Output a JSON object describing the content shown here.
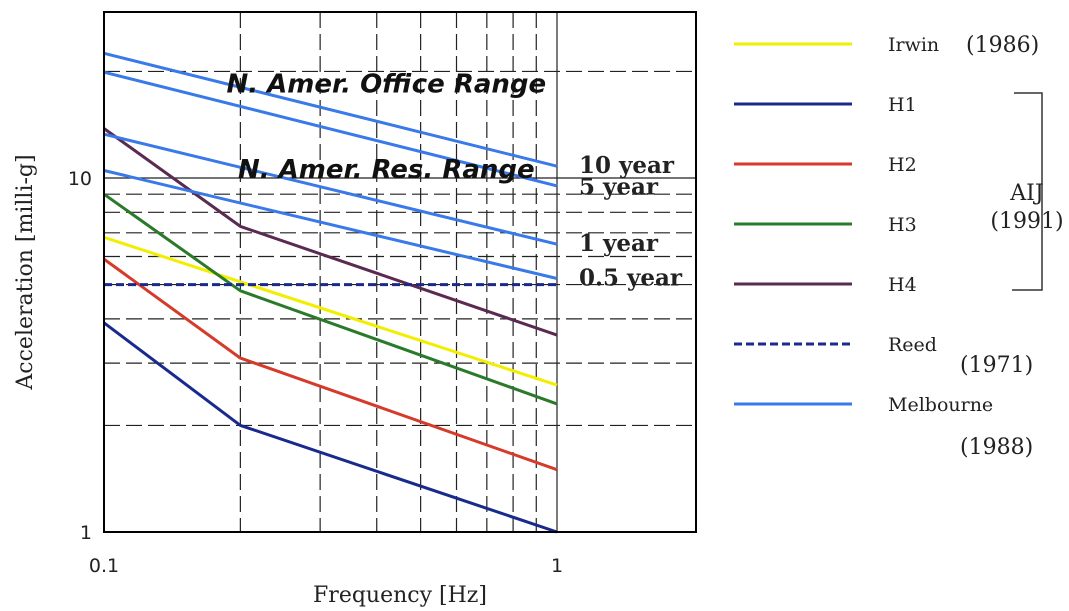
{
  "chart_data": {
    "type": "line",
    "x_scale": "log",
    "y_scale": "log",
    "xlim": [
      0.1,
      1.3
    ],
    "ylim": [
      1,
      20
    ],
    "xlabel": "Frequency [Hz]",
    "ylabel": "Acceleration [milli-g]",
    "x_ticks": [
      {
        "value": 0.1,
        "label": "0.1"
      },
      {
        "value": 1,
        "label": "1"
      }
    ],
    "y_ticks": [
      {
        "value": 1,
        "label": "1"
      },
      {
        "value": 10,
        "label": "10"
      }
    ],
    "grid": true,
    "colors": {
      "irwin": "#f2ee00",
      "h1": "#1a2a8c",
      "h2": "#d63a2a",
      "h3": "#2a7a2a",
      "h4": "#5a2a50",
      "reed": "#1a2a8c",
      "melbourne": "#3a7ae8"
    },
    "series": [
      {
        "name": "Irwin (1986)",
        "key": "irwin",
        "dash": false,
        "x": [
          0.1,
          1
        ],
        "y": [
          6.8,
          2.6
        ]
      },
      {
        "name": "H1",
        "key": "h1",
        "dash": false,
        "x": [
          0.1,
          0.2,
          1
        ],
        "y": [
          3.9,
          2.0,
          1.0
        ]
      },
      {
        "name": "H2",
        "key": "h2",
        "dash": false,
        "x": [
          0.1,
          0.2,
          1
        ],
        "y": [
          5.9,
          3.1,
          1.5
        ]
      },
      {
        "name": "H3",
        "key": "h3",
        "dash": false,
        "x": [
          0.1,
          0.2,
          1
        ],
        "y": [
          9.0,
          4.8,
          2.3
        ]
      },
      {
        "name": "H4",
        "key": "h4",
        "dash": false,
        "x": [
          0.1,
          0.2,
          1
        ],
        "y": [
          13.8,
          7.3,
          3.6
        ]
      },
      {
        "name": "Reed (1971)",
        "key": "reed",
        "dash": true,
        "x": [
          0.1,
          1
        ],
        "y": [
          5.0,
          5.0
        ]
      },
      {
        "name": "Melbourne (1988)",
        "key": "melbourne",
        "dash": false,
        "x": [
          0.1,
          1
        ],
        "y": [
          10.5,
          5.2
        ]
      },
      {
        "name": "",
        "key": "melbourne",
        "dash": false,
        "x": [
          0.1,
          1
        ],
        "y": [
          13.3,
          6.5
        ]
      },
      {
        "name": "",
        "key": "melbourne",
        "dash": false,
        "x": [
          0.1,
          1
        ],
        "y": [
          19.9,
          9.5
        ]
      },
      {
        "name": "",
        "key": "melbourne",
        "dash": false,
        "x": [
          0.1,
          1
        ],
        "y": [
          22.5,
          10.8
        ]
      }
    ],
    "curve_labels": [
      {
        "text": "10 year",
        "y": 10.8
      },
      {
        "text": "5 year",
        "y": 9.4
      },
      {
        "text": "1 year",
        "y": 6.5
      },
      {
        "text": "0.5 year",
        "y": 5.2
      }
    ],
    "annotations": [
      {
        "text": "N. Amer. Office Range",
        "x": 0.42,
        "y": 18.5
      },
      {
        "text": "N. Amer. Res. Range",
        "x": 0.42,
        "y": 10.6
      }
    ],
    "legend": {
      "placement": "right",
      "items": [
        {
          "key": "irwin",
          "dash": false,
          "label": "Irwin",
          "year": "(1986)"
        },
        {
          "key": "h1",
          "dash": false,
          "label": "H1",
          "year": ""
        },
        {
          "key": "h2",
          "dash": false,
          "label": "H2",
          "year": ""
        },
        {
          "key": "h3",
          "dash": false,
          "label": "H3",
          "year": ""
        },
        {
          "key": "h4",
          "dash": false,
          "label": "H4",
          "year": ""
        },
        {
          "key": "reed",
          "dash": true,
          "label": "Reed",
          "year": "(1971)"
        },
        {
          "key": "melbourne",
          "dash": false,
          "label": "Melbourne",
          "year": "(1988)"
        }
      ],
      "bracket_label": [
        "AIJ",
        "(1991)"
      ]
    }
  }
}
